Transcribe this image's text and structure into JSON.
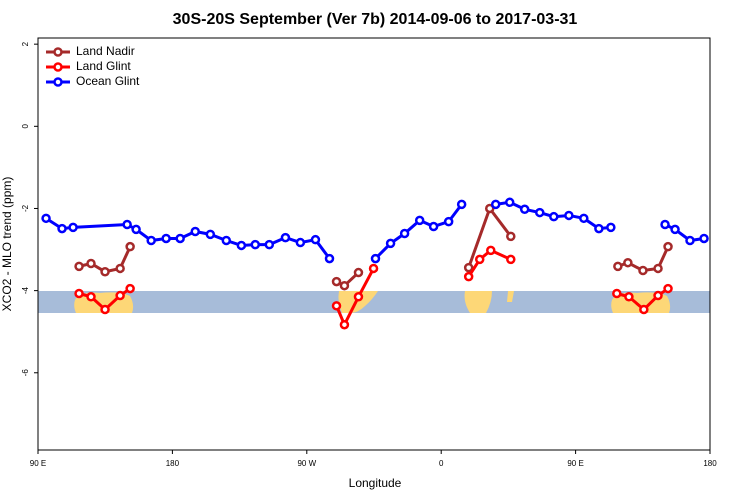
{
  "chart_data": {
    "type": "line",
    "title": "30S-20S September (Ver 7b)   2014-09-06 to 2017-03-31",
    "xlabel": "Longitude",
    "ylabel": "XCO2 - MLO trend (ppm)",
    "xlim": [
      90,
      540
    ],
    "xticks": [
      {
        "value": 90,
        "label": "90 E"
      },
      180,
      {
        "value": 270,
        "label": "90 W"
      },
      {
        "value": 360,
        "label": "0"
      },
      {
        "value": 450,
        "label": "90 E"
      },
      {
        "value": 540,
        "label": "180"
      }
    ],
    "ylim": [
      -7.88,
      2.15
    ],
    "yticks": [
      -6,
      -4,
      -2,
      0,
      2
    ],
    "legend": "top-left",
    "series": [
      {
        "name": "Land Nadir",
        "color": "#a52a2a",
        "x": [
          117.5,
          125.5,
          134.9,
          145,
          151.7,
          null,
          289.9,
          295.2,
          304.6,
          null,
          378.4,
          392.5,
          406.6,
          null,
          478.3,
          485,
          495.1,
          505.2,
          511.9
        ],
        "values": [
          -3.41,
          -3.34,
          -3.54,
          -3.46,
          -2.93,
          null,
          -3.78,
          -3.88,
          -3.56,
          null,
          -3.44,
          -2.0,
          -2.68,
          null,
          -3.41,
          -3.32,
          -3.51,
          -3.46,
          -2.93
        ]
      },
      {
        "name": "Land Glint",
        "color": "#ff0000",
        "x": [
          117.5,
          125.5,
          134.9,
          145,
          151.7,
          null,
          289.9,
          295.2,
          304.6,
          314.7,
          null,
          378.4,
          385.8,
          393.2,
          406.6,
          null,
          477.6,
          485.7,
          495.7,
          505.2,
          511.9
        ],
        "values": [
          -4.07,
          -4.15,
          -4.46,
          -4.12,
          -3.95,
          null,
          -4.37,
          -4.83,
          -4.15,
          -3.46,
          null,
          -3.66,
          -3.24,
          -3.02,
          -3.24,
          null,
          -4.07,
          -4.15,
          -4.46,
          -4.12,
          -3.95
        ]
      },
      {
        "name": "Ocean Glint",
        "color": "#0000ff",
        "x": [
          95.4,
          106.1,
          113.5,
          149.7,
          155.7,
          165.8,
          175.8,
          185.2,
          195.3,
          205.4,
          216.1,
          226.2,
          235.5,
          244.9,
          255.7,
          265.7,
          275.8,
          285.2,
          null,
          316,
          326.1,
          335.5,
          345.6,
          354.9,
          365,
          373.7,
          null,
          396.5,
          405.9,
          415.9,
          426,
          435.4,
          445.5,
          455.5,
          465.6,
          473.6,
          null,
          509.9,
          516.6,
          526.6,
          536
        ],
        "values": [
          -2.24,
          -2.49,
          -2.46,
          -2.39,
          -2.51,
          -2.78,
          -2.73,
          -2.73,
          -2.56,
          -2.63,
          -2.78,
          -2.9,
          -2.88,
          -2.88,
          -2.71,
          -2.83,
          -2.76,
          -3.22,
          null,
          -3.22,
          -2.85,
          -2.61,
          -2.29,
          -2.44,
          -2.32,
          -1.9,
          null,
          -1.9,
          -1.85,
          -2.02,
          -2.1,
          -2.2,
          -2.17,
          -2.24,
          -2.49,
          -2.46,
          null,
          -2.39,
          -2.51,
          -2.78,
          -2.73
        ]
      }
    ]
  }
}
